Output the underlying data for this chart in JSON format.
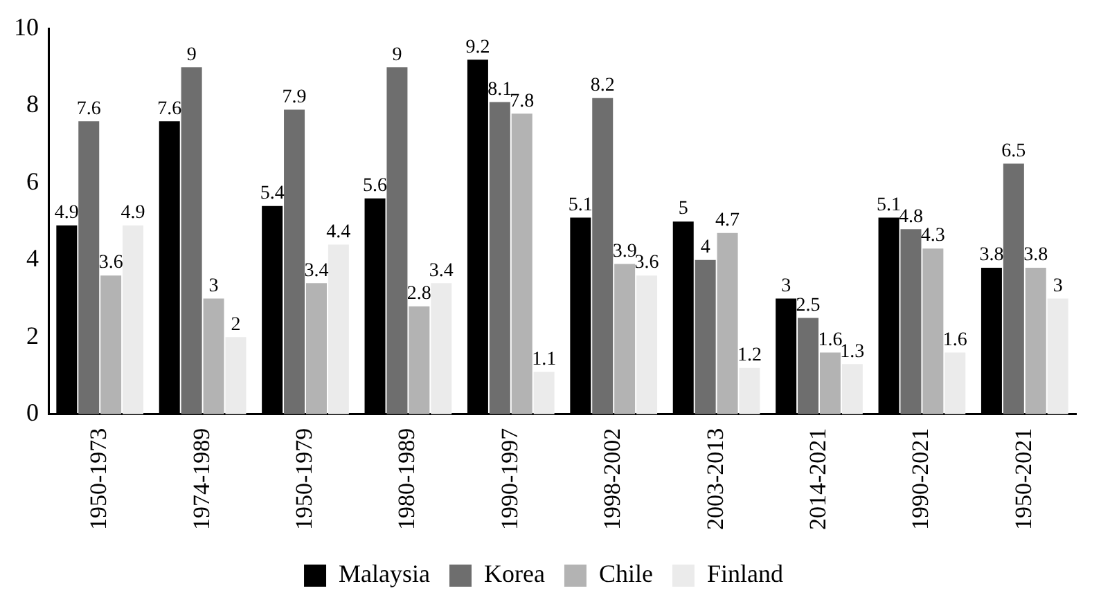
{
  "chart_data": {
    "type": "bar",
    "categories": [
      "1950-1973",
      "1974-1989",
      "1950-1979",
      "1980-1989",
      "1990-1997",
      "1998-2002",
      "2003-2013",
      "2014-2021",
      "1990-2021",
      "1950-2021"
    ],
    "series": [
      {
        "name": "Malaysia",
        "color": "#000000",
        "values": [
          4.9,
          7.6,
          5.4,
          5.6,
          9.2,
          5.1,
          5,
          3,
          5.1,
          3.8
        ]
      },
      {
        "name": "Korea",
        "color": "#6e6e6e",
        "values": [
          7.6,
          9,
          7.9,
          9,
          8.1,
          8.2,
          4,
          2.5,
          4.8,
          6.5
        ]
      },
      {
        "name": "Chile",
        "color": "#b3b3b3",
        "values": [
          3.6,
          3,
          3.4,
          2.8,
          7.8,
          3.9,
          4.7,
          1.6,
          4.3,
          3.8
        ]
      },
      {
        "name": "Finland",
        "color": "#ebebeb",
        "values": [
          4.9,
          2,
          4.4,
          3.4,
          1.1,
          3.6,
          1.2,
          1.3,
          1.6,
          3
        ]
      }
    ],
    "ylim": [
      0,
      10
    ],
    "yticks": [
      0,
      2,
      4,
      6,
      8,
      10
    ],
    "grid": false,
    "legend": "bottom",
    "data_labels": true
  }
}
